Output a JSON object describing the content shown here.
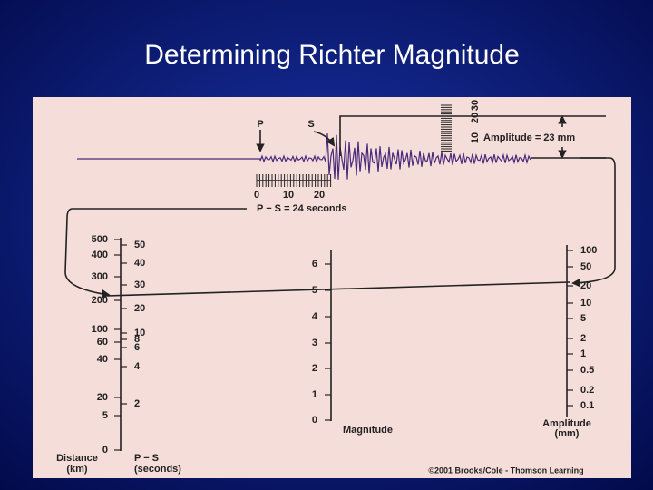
{
  "title": "Determining Richter Magnitude",
  "seismogram": {
    "p_label": "P",
    "s_label": "S",
    "time_ticks": [
      0,
      10,
      20
    ],
    "ps_label": "P − S = 24 seconds",
    "amplitude_ticks": [
      10,
      20,
      30
    ],
    "amplitude_label": "Amplitude = 23 mm"
  },
  "distance_scale": {
    "ticks": [
      500,
      400,
      300,
      200,
      100,
      60,
      40,
      20,
      5,
      0
    ],
    "label_lines": [
      "Distance",
      "(km)"
    ]
  },
  "ps_scale": {
    "ticks": [
      50,
      40,
      30,
      20,
      10,
      8,
      6,
      4,
      2
    ],
    "label_lines": [
      "P − S",
      "(seconds)"
    ]
  },
  "magnitude_scale": {
    "ticks": [
      6,
      5,
      4,
      3,
      2,
      1,
      0
    ],
    "label": "Magnitude"
  },
  "amplitude_scale": {
    "ticks": [
      100,
      50,
      20,
      10,
      5,
      2,
      1,
      0.5,
      0.2,
      0.1
    ],
    "label_lines": [
      "Amplitude",
      "(mm)"
    ]
  },
  "credit": "©2001 Brooks/Cole - Thomson Learning"
}
